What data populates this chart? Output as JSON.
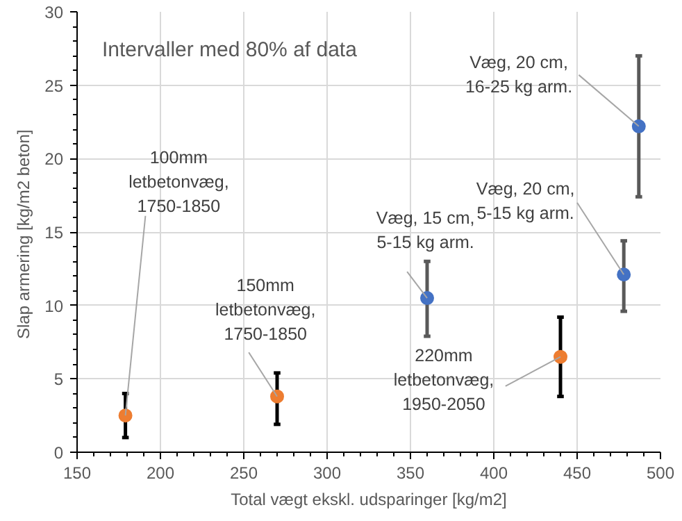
{
  "chart_data": {
    "type": "scatter",
    "xlabel": "Total vægt ekskl. udsparinger [kg/m2]",
    "ylabel": "Slap armering  [kg/m2 beton]",
    "xlim": [
      150,
      500
    ],
    "xticks": [
      150,
      200,
      250,
      300,
      350,
      400,
      450,
      500
    ],
    "ylim": [
      0,
      30
    ],
    "yticks": [
      0,
      5,
      10,
      15,
      20,
      25,
      30
    ],
    "grid": true,
    "marker": "circle",
    "series": [
      {
        "color": "#ed7d31",
        "x": [
          179,
          270,
          440
        ],
        "values": [
          2.5,
          3.8,
          6.5
        ],
        "errors": [
          [
            1.0,
            4.0
          ],
          [
            1.9,
            5.4
          ],
          [
            3.8,
            9.2
          ]
        ]
      },
      {
        "color": "#4472c4",
        "x": [
          360,
          478,
          487
        ],
        "values": [
          10.5,
          12.1,
          22.2
        ],
        "errors": [
          [
            7.9,
            13.0
          ],
          [
            9.6,
            14.4
          ],
          [
            17.4,
            27.0
          ]
        ]
      }
    ],
    "annotations": [
      "Intervaller med 80% af data",
      {
        "text": "100mm\nletbetonvæg,\n1750-1850",
        "x": 179,
        "y": 2.5
      },
      {
        "text": "150mm\nletbetonvæg,\n1750-1850",
        "x": 270,
        "y": 3.8
      },
      {
        "text": "Væg, 15 cm,\n5-15 kg arm.",
        "x": 360,
        "y": 10.5
      },
      {
        "text": "220mm\nletbetonvæg,\n1950-2050",
        "x": 440,
        "y": 6.5
      },
      {
        "text": "Væg, 20 cm,\n5-15 kg arm.",
        "x": 478,
        "y": 12.1
      },
      {
        "text": "Væg, 20 cm,\n16-25 kg arm.",
        "x": 487,
        "y": 22.2
      }
    ]
  }
}
